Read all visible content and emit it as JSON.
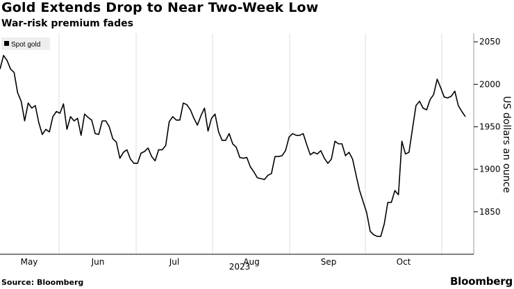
{
  "header": {
    "title": "Gold Extends Drop to Near Two-Week Low",
    "subtitle": "War-risk premium fades"
  },
  "footer": {
    "source": "Source: Bloomberg",
    "brand": "Bloomberg"
  },
  "chart_data": {
    "type": "line",
    "title": "Gold Extends Drop to Near Two-Week Low",
    "subtitle": "War-risk premium fades",
    "ylabel": "US dollars an ounce",
    "xlabel": "2023",
    "ylim": [
      1800,
      2060
    ],
    "yticks": [
      1850,
      1900,
      1950,
      2000,
      2050
    ],
    "x_tick_labels": [
      "May",
      "Jun",
      "Jul",
      "Aug",
      "Sep",
      "Oct"
    ],
    "grid": "vertical",
    "legend": "top-left",
    "colors": {
      "line": "#000000",
      "grid": "#dddddd",
      "legend_bg": "#eeeeee"
    },
    "series": [
      {
        "name": "Spot gold",
        "values": [
          2018,
          2034,
          2028,
          2018,
          2014,
          1990,
          1980,
          1957,
          1978,
          1972,
          1975,
          1955,
          1941,
          1947,
          1944,
          1962,
          1968,
          1966,
          1977,
          1947,
          1962,
          1957,
          1960,
          1940,
          1965,
          1961,
          1958,
          1942,
          1941,
          1957,
          1957,
          1950,
          1936,
          1932,
          1913,
          1920,
          1923,
          1912,
          1907,
          1907,
          1919,
          1921,
          1925,
          1915,
          1910,
          1923,
          1923,
          1928,
          1956,
          1962,
          1958,
          1958,
          1978,
          1976,
          1970,
          1960,
          1952,
          1963,
          1972,
          1945,
          1960,
          1965,
          1944,
          1934,
          1934,
          1942,
          1930,
          1926,
          1914,
          1913,
          1914,
          1903,
          1897,
          1890,
          1889,
          1888,
          1893,
          1895,
          1915,
          1915,
          1916,
          1922,
          1938,
          1942,
          1940,
          1940,
          1942,
          1929,
          1917,
          1920,
          1918,
          1922,
          1913,
          1907,
          1912,
          1933,
          1930,
          1930,
          1916,
          1920,
          1912,
          1893,
          1875,
          1862,
          1849,
          1827,
          1823,
          1821,
          1821,
          1836,
          1861,
          1861,
          1875,
          1870,
          1933,
          1918,
          1920,
          1948,
          1975,
          1980,
          1972,
          1970,
          1982,
          1988,
          2006,
          1996,
          1985,
          1984,
          1986,
          1992,
          1975,
          1968,
          1962
        ]
      }
    ]
  }
}
